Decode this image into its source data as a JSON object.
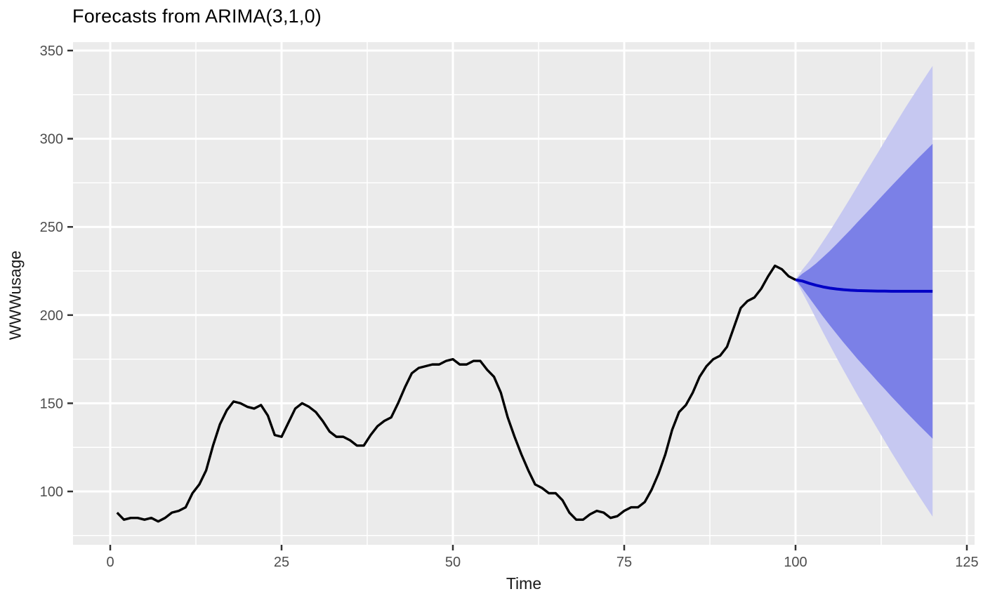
{
  "chart_data": {
    "type": "line",
    "title": "Forecasts from ARIMA(3,1,0)",
    "xlabel": "Time",
    "ylabel": "WWWusage",
    "x_ticks": [
      0,
      25,
      50,
      75,
      100,
      125
    ],
    "y_ticks": [
      100,
      150,
      200,
      250,
      300,
      350
    ],
    "x_minor_ticks": [
      12.5,
      37.5,
      62.5,
      87.5,
      112.5
    ],
    "y_minor_ticks": [
      75,
      125,
      175,
      225,
      275,
      325
    ],
    "xlim": [
      -5.4,
      126.2
    ],
    "ylim": [
      70.2,
      354.8
    ],
    "grid": true,
    "legend": "none",
    "theme": {
      "panel_bg": "#EBEBEB",
      "grid_major_color": "#FFFFFF",
      "grid_minor_color": "#FFFFFF",
      "tick_mark_color": "#333333",
      "axis_text_color": "#4D4D4D",
      "title_color": "#000000"
    },
    "series": [
      {
        "name": "observed",
        "color": "#000000",
        "width": 3.4,
        "x": [
          1,
          2,
          3,
          4,
          5,
          6,
          7,
          8,
          9,
          10,
          11,
          12,
          13,
          14,
          15,
          16,
          17,
          18,
          19,
          20,
          21,
          22,
          23,
          24,
          25,
          26,
          27,
          28,
          29,
          30,
          31,
          32,
          33,
          34,
          35,
          36,
          37,
          38,
          39,
          40,
          41,
          42,
          43,
          44,
          45,
          46,
          47,
          48,
          49,
          50,
          51,
          52,
          53,
          54,
          55,
          56,
          57,
          58,
          59,
          60,
          61,
          62,
          63,
          64,
          65,
          66,
          67,
          68,
          69,
          70,
          71,
          72,
          73,
          74,
          75,
          76,
          77,
          78,
          79,
          80,
          81,
          82,
          83,
          84,
          85,
          86,
          87,
          88,
          89,
          90,
          91,
          92,
          93,
          94,
          95,
          96,
          97,
          98,
          99,
          100
        ],
        "y": [
          88,
          84,
          85,
          85,
          84,
          85,
          83,
          85,
          88,
          89,
          91,
          99,
          104,
          112,
          126,
          138,
          146,
          151,
          150,
          148,
          147,
          149,
          143,
          132,
          131,
          139,
          147,
          150,
          148,
          145,
          140,
          134,
          131,
          131,
          129,
          126,
          126,
          132,
          137,
          140,
          142,
          150,
          159,
          167,
          170,
          171,
          172,
          172,
          174,
          175,
          172,
          172,
          174,
          174,
          169,
          165,
          156,
          142,
          131,
          121,
          112,
          104,
          102,
          99,
          99,
          95,
          88,
          84,
          84,
          87,
          89,
          88,
          85,
          86,
          89,
          91,
          91,
          94,
          101,
          110,
          121,
          135,
          145,
          149,
          156,
          165,
          171,
          175,
          177,
          182,
          193,
          204,
          208,
          210,
          215,
          222,
          228,
          226,
          222,
          220
        ]
      },
      {
        "name": "forecast-mean",
        "color": "#0000C5",
        "width": 4,
        "x": [
          100,
          101,
          102,
          103,
          104,
          105,
          106,
          107,
          108,
          109,
          110,
          111,
          112,
          113,
          114,
          115,
          116,
          117,
          118,
          119,
          120
        ],
        "y": [
          220,
          219.3,
          218.0,
          216.9,
          216.0,
          215.3,
          214.8,
          214.4,
          214.1,
          213.9,
          213.8,
          213.7,
          213.6,
          213.6,
          213.5,
          213.5,
          213.5,
          213.5,
          213.5,
          213.5,
          213.5
        ]
      }
    ],
    "intervals": [
      {
        "level": 95,
        "color": "#C6C8F1",
        "x": [
          100,
          101,
          102,
          103,
          104,
          105,
          106,
          107,
          108,
          109,
          110,
          111,
          112,
          113,
          114,
          115,
          116,
          117,
          118,
          119,
          120
        ],
        "lower": [
          220,
          212.8,
          205.5,
          197.9,
          190.3,
          183.0,
          175.8,
          168.7,
          161.8,
          154.9,
          148.3,
          141.8,
          135.2,
          128.7,
          122.2,
          115.9,
          109.6,
          103.5,
          97.5,
          91.6,
          85.7
        ],
        "upper": [
          220,
          225.8,
          230.5,
          235.9,
          241.7,
          247.6,
          253.8,
          260.1,
          266.4,
          272.9,
          279.3,
          285.6,
          292.0,
          298.5,
          304.8,
          311.1,
          317.4,
          323.5,
          329.5,
          335.4,
          341.3
        ]
      },
      {
        "level": 80,
        "color": "#7B80E7",
        "x": [
          100,
          101,
          102,
          103,
          104,
          105,
          106,
          107,
          108,
          109,
          110,
          111,
          112,
          113,
          114,
          115,
          116,
          117,
          118,
          119,
          120
        ],
        "lower": [
          220,
          215.1,
          209.8,
          204.5,
          199.2,
          194.2,
          189.3,
          184.5,
          179.9,
          175.3,
          171.0,
          166.7,
          162.3,
          158.1,
          153.8,
          149.7,
          145.6,
          141.6,
          137.6,
          133.8,
          129.9
        ],
        "upper": [
          220,
          223.5,
          226.2,
          229.3,
          232.8,
          236.4,
          240.3,
          244.3,
          248.3,
          252.5,
          256.6,
          260.7,
          264.9,
          269.1,
          273.2,
          277.3,
          281.4,
          285.4,
          289.4,
          293.2,
          297.1
        ]
      }
    ]
  }
}
